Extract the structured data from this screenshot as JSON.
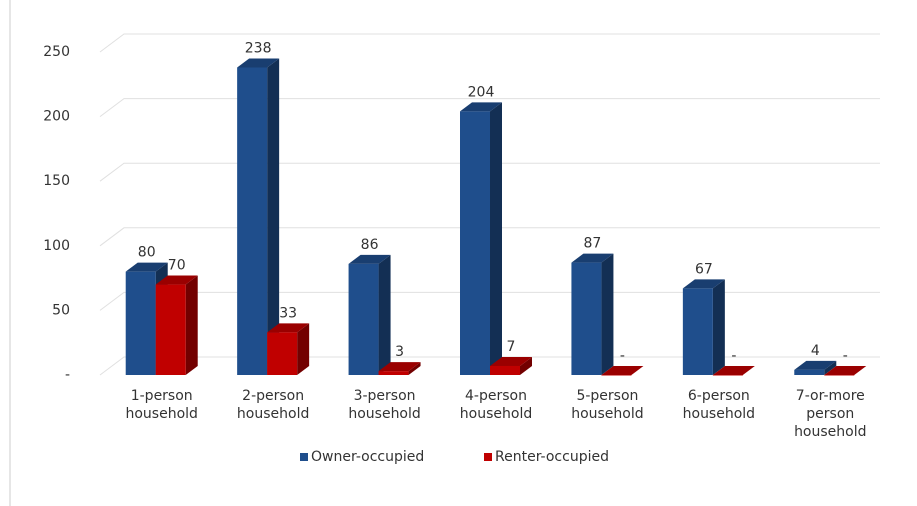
{
  "chart_data": {
    "type": "bar3d",
    "categories": [
      "1-person household",
      "2-person household",
      "3-person household",
      "4-person household",
      "5-person household",
      "6-person household",
      "7-or-more person household"
    ],
    "series": [
      {
        "name": "Owner-occupied",
        "color": "#1f4e8c",
        "values": [
          80,
          238,
          86,
          204,
          87,
          67,
          4
        ]
      },
      {
        "name": "Renter-occupied",
        "color": "#c00000",
        "values": [
          70,
          33,
          3,
          7,
          0,
          0,
          0
        ],
        "value_labels": [
          "70",
          "33",
          "3",
          "7",
          "-",
          "-",
          "-"
        ]
      }
    ],
    "ylim": [
      0,
      250
    ],
    "yticks": [
      {
        "value": 0,
        "label": "-"
      },
      50,
      100,
      150,
      200,
      250
    ],
    "grid": true,
    "legend": "bottom"
  }
}
